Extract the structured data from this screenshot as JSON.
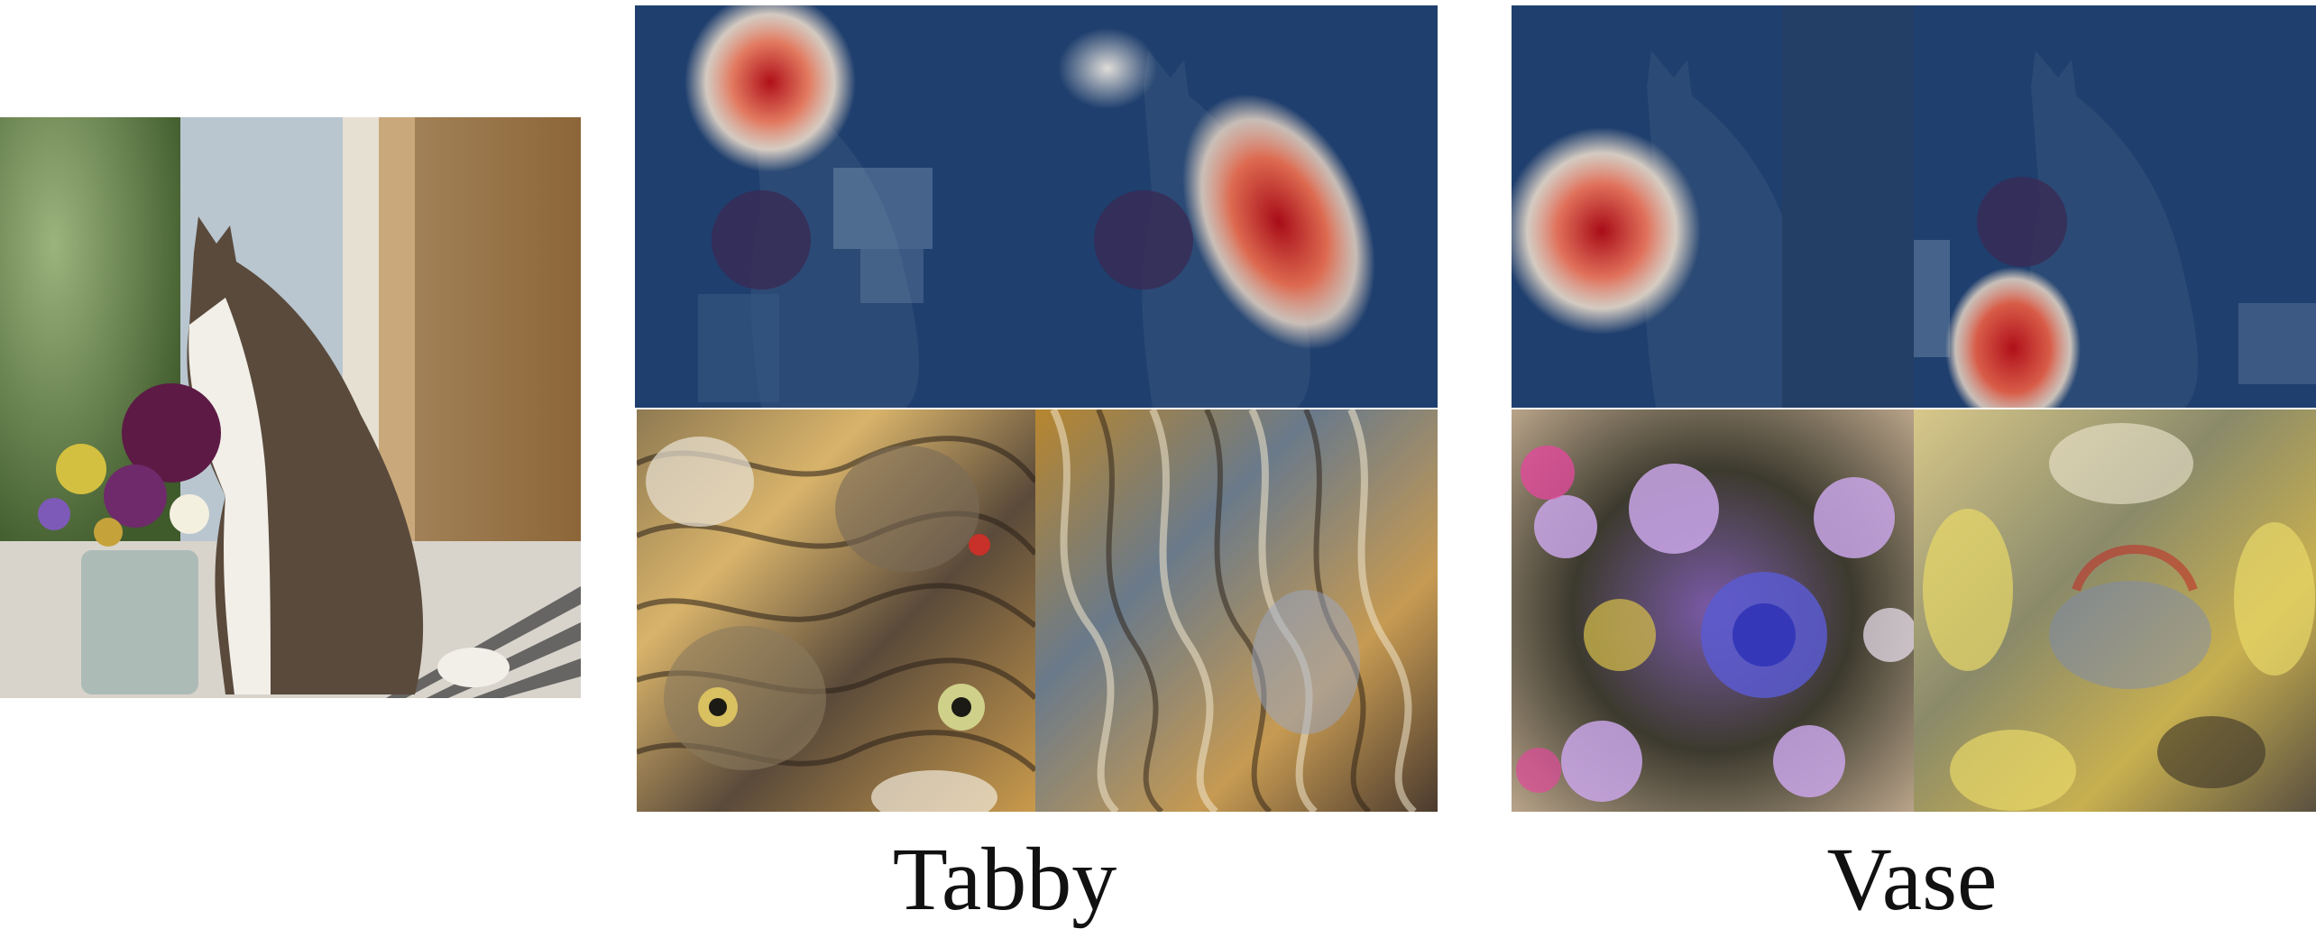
{
  "figure": {
    "groups": [
      {
        "label": "Tabby"
      },
      {
        "label": "Vase"
      }
    ],
    "colors": {
      "overlay_blue": "#1f3f6e",
      "heat_red": "#b0101a",
      "background": "#ffffff"
    }
  }
}
